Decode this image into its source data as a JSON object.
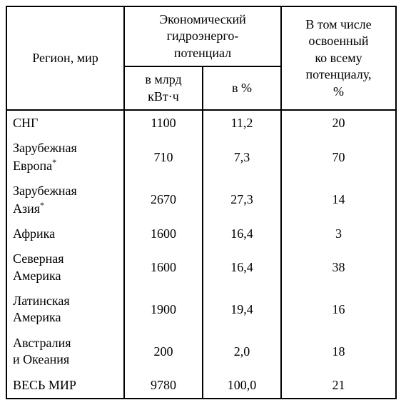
{
  "headers": {
    "region": "Регион, мир",
    "economic_potential": "Экономический\nгидроэнерго-\nпотенциал",
    "sub_billion": "в млрд\nкВт·ч",
    "sub_percent": "в %",
    "utilized": "В том числе\nосвоенный\nко всему\nпотенциалу,\n%"
  },
  "rows": [
    {
      "region": "СНГ",
      "billion": "1100",
      "percent": "11,2",
      "utilized": "20"
    },
    {
      "region": "Зарубежная\nЕвропа*",
      "billion": "710",
      "percent": "7,3",
      "utilized": "70"
    },
    {
      "region": "Зарубежная\nАзия*",
      "billion": "2670",
      "percent": "27,3",
      "utilized": "14"
    },
    {
      "region": "Африка",
      "billion": "1600",
      "percent": "16,4",
      "utilized": "3"
    },
    {
      "region": "Северная\nАмерика",
      "billion": "1600",
      "percent": "16,4",
      "utilized": "38"
    },
    {
      "region": "Латинская\nАмерика",
      "billion": "1900",
      "percent": "19,4",
      "utilized": "16"
    },
    {
      "region": "Австралия\nи Океания",
      "billion": "200",
      "percent": "2,0",
      "utilized": "18"
    },
    {
      "region": "ВЕСЬ МИР",
      "billion": "9780",
      "percent": "100,0",
      "utilized": "21"
    }
  ],
  "column_widths": {
    "region": "165px",
    "billion": "110px",
    "percent": "110px",
    "utilized": "161px"
  }
}
